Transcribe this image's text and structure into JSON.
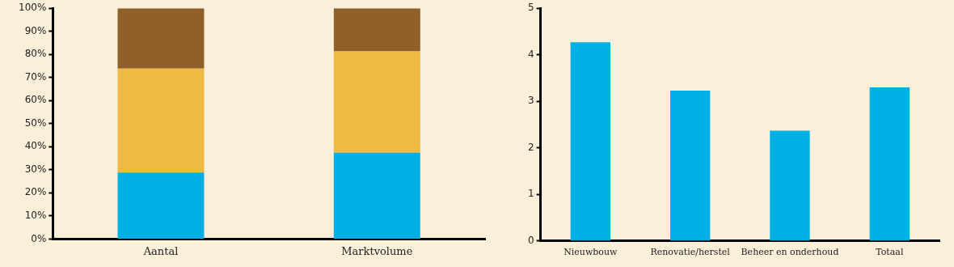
{
  "chart_data": [
    {
      "type": "bar",
      "stacked": true,
      "categories": [
        "Aantal",
        "Marktvolume"
      ],
      "series": [
        {
          "color": "#00b0e4",
          "values": [
            28.8,
            37.4
          ]
        },
        {
          "color": "#eeba43",
          "values": [
            45.1,
            43.9
          ]
        },
        {
          "color": "#8f6029",
          "values": [
            26.1,
            18.7
          ]
        }
      ],
      "ylim": [
        0,
        100
      ],
      "yticks": [
        {
          "value": 0,
          "label": "0%"
        },
        {
          "value": 10,
          "label": "10%"
        },
        {
          "value": 20,
          "label": "20%"
        },
        {
          "value": 30,
          "label": "30%"
        },
        {
          "value": 40,
          "label": "40%"
        },
        {
          "value": 50,
          "label": "50%"
        },
        {
          "value": 60,
          "label": "60%"
        },
        {
          "value": 70,
          "label": "70%"
        },
        {
          "value": 80,
          "label": "80%"
        },
        {
          "value": 90,
          "label": "90%"
        },
        {
          "value": 100,
          "label": "100%"
        }
      ],
      "grid": false,
      "legend": false
    },
    {
      "type": "bar",
      "categories": [
        "Nieuwbouw",
        "Renovatie/herstel",
        "Beheer en onderhoud",
        "Totaal"
      ],
      "series": [
        {
          "color": "#00b0e4",
          "values": [
            4.27,
            3.23,
            2.37,
            3.3
          ]
        }
      ],
      "ylim": [
        0,
        5
      ],
      "yticks": [
        0,
        1,
        2,
        3,
        4,
        5
      ],
      "grid": false,
      "legend": false
    }
  ]
}
